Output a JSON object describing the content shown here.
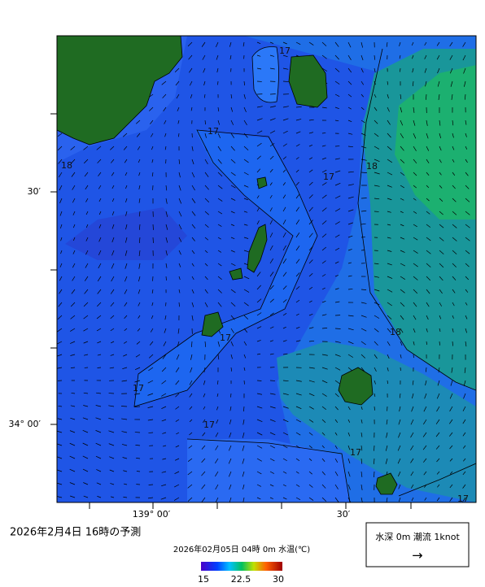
{
  "map": {
    "lat_labels": [
      "30′",
      "34° 00′"
    ],
    "lon_labels": [
      "139° 00′",
      "30′"
    ],
    "contour_labels": [
      "17",
      "17",
      "17",
      "17",
      "17",
      "17",
      "17",
      "17",
      "18",
      "18",
      "18"
    ]
  },
  "title": "2026年2月4日 16時の予測",
  "colorbar": {
    "caption": "2026年02月05日 04時 0m 水温(℃)",
    "ticks": [
      15,
      22.5,
      30
    ]
  },
  "legend": {
    "text": "水深 0m 潮流 1knot",
    "arrow": "→"
  }
}
